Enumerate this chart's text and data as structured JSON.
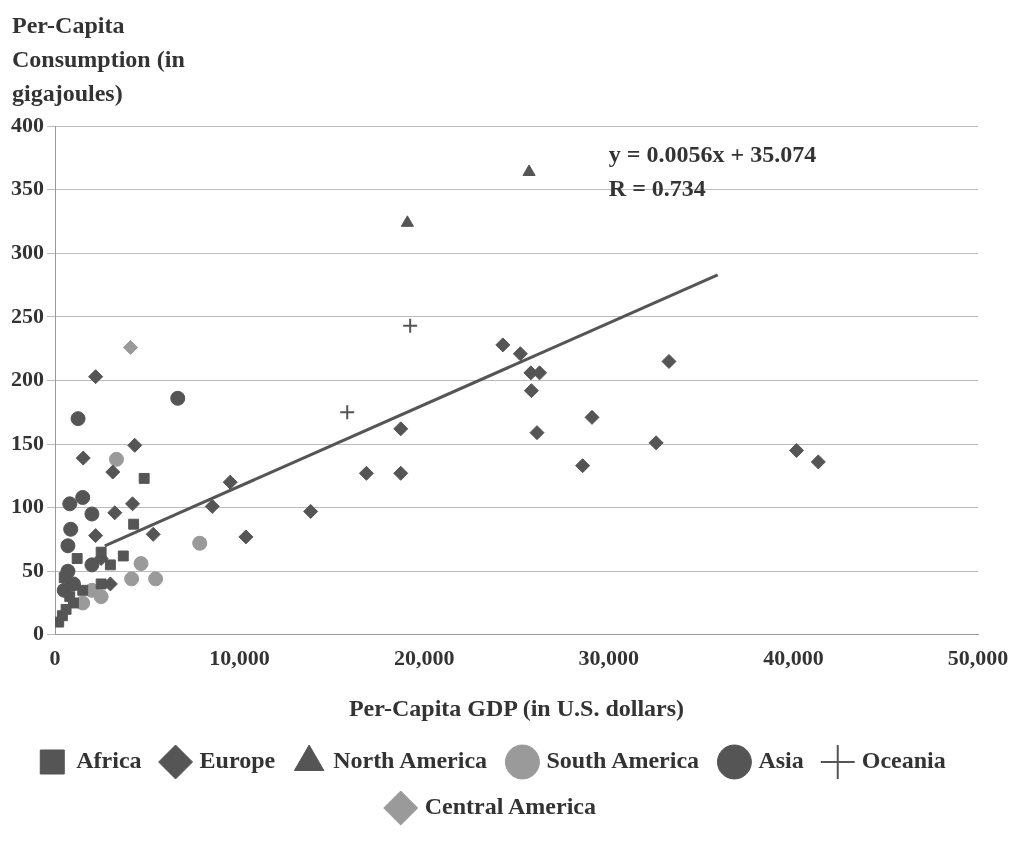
{
  "chart_data": {
    "type": "scatter",
    "ylabel": "Per-Capita Consumption (in gigajoules)",
    "xlabel": "Per-Capita GDP (in U.S. dollars)",
    "xlim": [
      0,
      50000
    ],
    "xticks": [
      0,
      {
        "value": 10000,
        "label": "10,000"
      },
      {
        "value": 20000,
        "label": "20,000"
      },
      {
        "value": 30000,
        "label": "30,000"
      },
      {
        "value": 40000,
        "label": "40,000"
      },
      {
        "value": 50000,
        "label": "50,000"
      }
    ],
    "ylim": [
      0,
      400
    ],
    "yticks": [
      0,
      50,
      100,
      150,
      200,
      250,
      300,
      350,
      400
    ],
    "grid": "y",
    "legend": "bottom",
    "annotations": [
      "y = 0.0056x + 35.074",
      "R = 0.734"
    ],
    "series": [
      {
        "name": "Africa",
        "marker": "square",
        "color": "#555555",
        "x": [
          4830,
          4260,
          200,
          400,
          600,
          800,
          1000,
          1500,
          2500,
          3000,
          1200,
          2500,
          500,
          3700
        ],
        "values": [
          123,
          87,
          10,
          15,
          20,
          30,
          25,
          35,
          40,
          55,
          60,
          65,
          45,
          62
        ]
      },
      {
        "name": "Europe",
        "marker": "diamond",
        "color": "#555555",
        "x": [
          2200,
          4320,
          1530,
          3130,
          3240,
          4200,
          5320,
          8520,
          2200,
          9490,
          10340,
          13850,
          16870,
          18730,
          18730,
          24260,
          25210,
          25780,
          26250,
          25810,
          26110,
          29090,
          28580,
          33260,
          32560,
          40170,
          41350,
          2500,
          3000
        ],
        "values": [
          203,
          149,
          139,
          128,
          96,
          103,
          79,
          101,
          78,
          120,
          77,
          97,
          127,
          127,
          162,
          228,
          221,
          206,
          206,
          192,
          159,
          171,
          133,
          215,
          151,
          145,
          136,
          60,
          40
        ]
      },
      {
        "name": "North America",
        "marker": "triangle",
        "color": "#555555",
        "x": [
          19090,
          25680
        ],
        "values": [
          324,
          364
        ]
      },
      {
        "name": "South America",
        "marker": "circle",
        "color": "#9a9a9a",
        "x": [
          7840,
          4660,
          4150,
          5450,
          3330,
          2000,
          2500,
          1500
        ],
        "values": [
          72,
          56,
          44,
          44,
          138,
          35,
          30,
          25
        ]
      },
      {
        "name": "Asia",
        "marker": "circle",
        "color": "#555555",
        "x": [
          6650,
          1250,
          1500,
          2000,
          800,
          850,
          500,
          700,
          1000,
          2000,
          700
        ],
        "values": [
          186,
          170,
          108,
          95,
          103,
          83,
          35,
          50,
          40,
          55,
          70
        ]
      },
      {
        "name": "Oceania",
        "marker": "cross",
        "color": "#555555",
        "x": [
          19240,
          15830
        ],
        "values": [
          243,
          175
        ]
      },
      {
        "name": "Central America",
        "marker": "diamond",
        "color": "#9a9a9a",
        "x": [
          4090
        ],
        "values": [
          226
        ]
      },
      {
        "type": "line",
        "color": "#555555",
        "line_style": "solid",
        "marker": "none",
        "x": [
          2700,
          35900
        ],
        "values": [
          70,
          283
        ]
      }
    ]
  }
}
